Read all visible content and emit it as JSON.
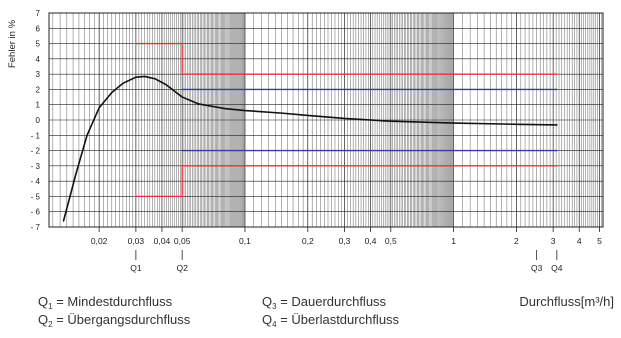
{
  "chart_data": {
    "type": "line",
    "xscale": "log",
    "xlim": [
      0.0115,
      5.2
    ],
    "ylim": [
      -7,
      7
    ],
    "xlabel": "Durchfluss[m³/h]",
    "ylabel": "Fehler in %",
    "grid": true,
    "x_ticks": [
      {
        "value": 0.02,
        "label": "0,02"
      },
      {
        "value": 0.03,
        "label": "0,03"
      },
      {
        "value": 0.04,
        "label": "0,04"
      },
      {
        "value": 0.05,
        "label": "0,05"
      },
      {
        "value": 0.1,
        "label": "0,1"
      },
      {
        "value": 0.2,
        "label": "0,2"
      },
      {
        "value": 0.3,
        "label": "0,3"
      },
      {
        "value": 0.4,
        "label": "0,4"
      },
      {
        "value": 0.5,
        "label": "0,5"
      },
      {
        "value": 1,
        "label": "1"
      },
      {
        "value": 2,
        "label": "2"
      },
      {
        "value": 3,
        "label": "3"
      },
      {
        "value": 4,
        "label": "4"
      },
      {
        "value": 5,
        "label": "5"
      }
    ],
    "y_ticks": [
      {
        "value": 7,
        "label": "7"
      },
      {
        "value": 6,
        "label": "6"
      },
      {
        "value": 5,
        "label": "5"
      },
      {
        "value": 4,
        "label": "4"
      },
      {
        "value": 3,
        "label": "3"
      },
      {
        "value": 2,
        "label": "2"
      },
      {
        "value": 1,
        "label": "1"
      },
      {
        "value": 0,
        "label": "0"
      },
      {
        "value": -1,
        "label": "- 1"
      },
      {
        "value": -2,
        "label": "- 2"
      },
      {
        "value": -3,
        "label": "- 3"
      },
      {
        "value": -4,
        "label": "- 4"
      },
      {
        "value": -5,
        "label": "- 5"
      },
      {
        "value": -6,
        "label": "- 6"
      },
      {
        "value": -7,
        "label": "- 7"
      }
    ],
    "flow_markers": [
      {
        "label": "Q1",
        "x": 0.03
      },
      {
        "label": "Q2",
        "x": 0.05
      },
      {
        "label": "Q3",
        "x": 2.5
      },
      {
        "label": "Q4",
        "x": 3.125
      }
    ],
    "series": [
      {
        "id": "measured",
        "color": "#111111",
        "x": [
          0.0135,
          0.0155,
          0.0175,
          0.02,
          0.023,
          0.026,
          0.03,
          0.033,
          0.037,
          0.042,
          0.05,
          0.06,
          0.08,
          0.1,
          0.15,
          0.2,
          0.3,
          0.5,
          1,
          2,
          3.125
        ],
        "y": [
          -6.6,
          -3.5,
          -1.0,
          0.8,
          1.8,
          2.4,
          2.8,
          2.85,
          2.7,
          2.3,
          1.5,
          1.05,
          0.75,
          0.62,
          0.45,
          0.3,
          0.1,
          -0.08,
          -0.2,
          -0.28,
          -0.32
        ]
      },
      {
        "id": "mpe-red-upper",
        "color": "#e8323c",
        "x": [
          0.03,
          0.05,
          0.05,
          3.125
        ],
        "y": [
          5,
          5,
          3,
          3
        ]
      },
      {
        "id": "mpe-red-lower",
        "color": "#e8323c",
        "x": [
          0.03,
          0.05,
          0.05,
          3.125
        ],
        "y": [
          -5,
          -5,
          -3,
          -3
        ]
      },
      {
        "id": "mpe-blue-upper",
        "color": "#3a3a9e",
        "x": [
          0.05,
          3.125
        ],
        "y": [
          2,
          2
        ]
      },
      {
        "id": "mpe-blue-lower",
        "color": "#3a3a9e",
        "x": [
          0.05,
          3.125
        ],
        "y": [
          -2,
          -2
        ]
      }
    ]
  },
  "legend": [
    {
      "q": "Q",
      "sub": "1",
      "text": " = Mindestdurchfluss"
    },
    {
      "q": "Q",
      "sub": "2",
      "text": " = Übergangsdurchfluss"
    },
    {
      "q": "Q",
      "sub": "3",
      "text": " = Dauerdurchfluss"
    },
    {
      "q": "Q",
      "sub": "4",
      "text": " = Überlastdurchfluss"
    }
  ]
}
